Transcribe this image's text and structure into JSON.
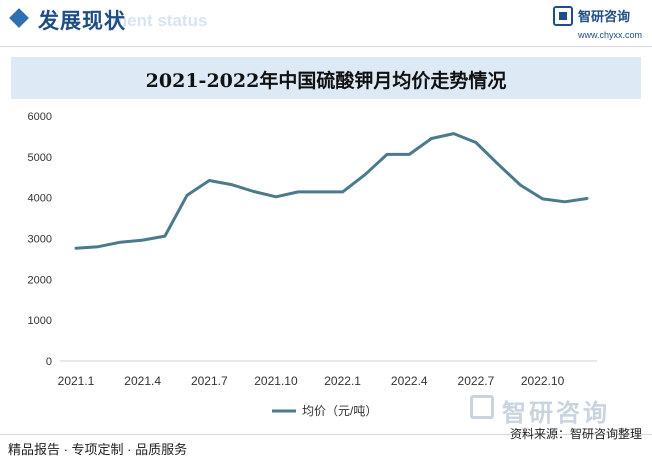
{
  "header": {
    "title": "发展现状",
    "subtitle": "ment status",
    "logo_name": "智研咨询",
    "logo_url": "www.chyxx.com"
  },
  "watermark": {
    "name": "智研咨询"
  },
  "footer": {
    "left": "精品报告 · 专项定制 · 品质服务",
    "source": "资料来源：智研咨询整理"
  },
  "colors": {
    "line": "#4a7a8c",
    "accent": "#1f4e84",
    "band": "#dde9f5"
  },
  "chart_data": {
    "type": "line",
    "title": "2021-2022年中国硫酸钾月均价走势情况",
    "xlabel": "",
    "ylabel": "",
    "ylim": [
      0,
      6000
    ],
    "yticks": [
      0,
      1000,
      2000,
      3000,
      4000,
      5000,
      6000
    ],
    "x": [
      "2021.1",
      "2021.2",
      "2021.3",
      "2021.4",
      "2021.5",
      "2021.6",
      "2021.7",
      "2021.8",
      "2021.9",
      "2021.10",
      "2021.11",
      "2021.12",
      "2022.1",
      "2022.2",
      "2022.3",
      "2022.4",
      "2022.5",
      "2022.6",
      "2022.7",
      "2022.8",
      "2022.9",
      "2022.10",
      "2022.11",
      "2022.12"
    ],
    "xtick_labels": [
      "2021.1",
      "2021.4",
      "2021.7",
      "2021.10",
      "2022.1",
      "2022.4",
      "2022.7",
      "2022.10"
    ],
    "grid": false,
    "legend_position": "bottom-center",
    "series": [
      {
        "name": "均价（元/吨）",
        "values": [
          2760,
          2800,
          2910,
          2960,
          3060,
          4060,
          4420,
          4320,
          4150,
          4020,
          4140,
          4140,
          4140,
          4560,
          5060,
          5060,
          5450,
          5570,
          5350,
          4820,
          4310,
          3970,
          3900,
          3980
        ]
      }
    ]
  }
}
